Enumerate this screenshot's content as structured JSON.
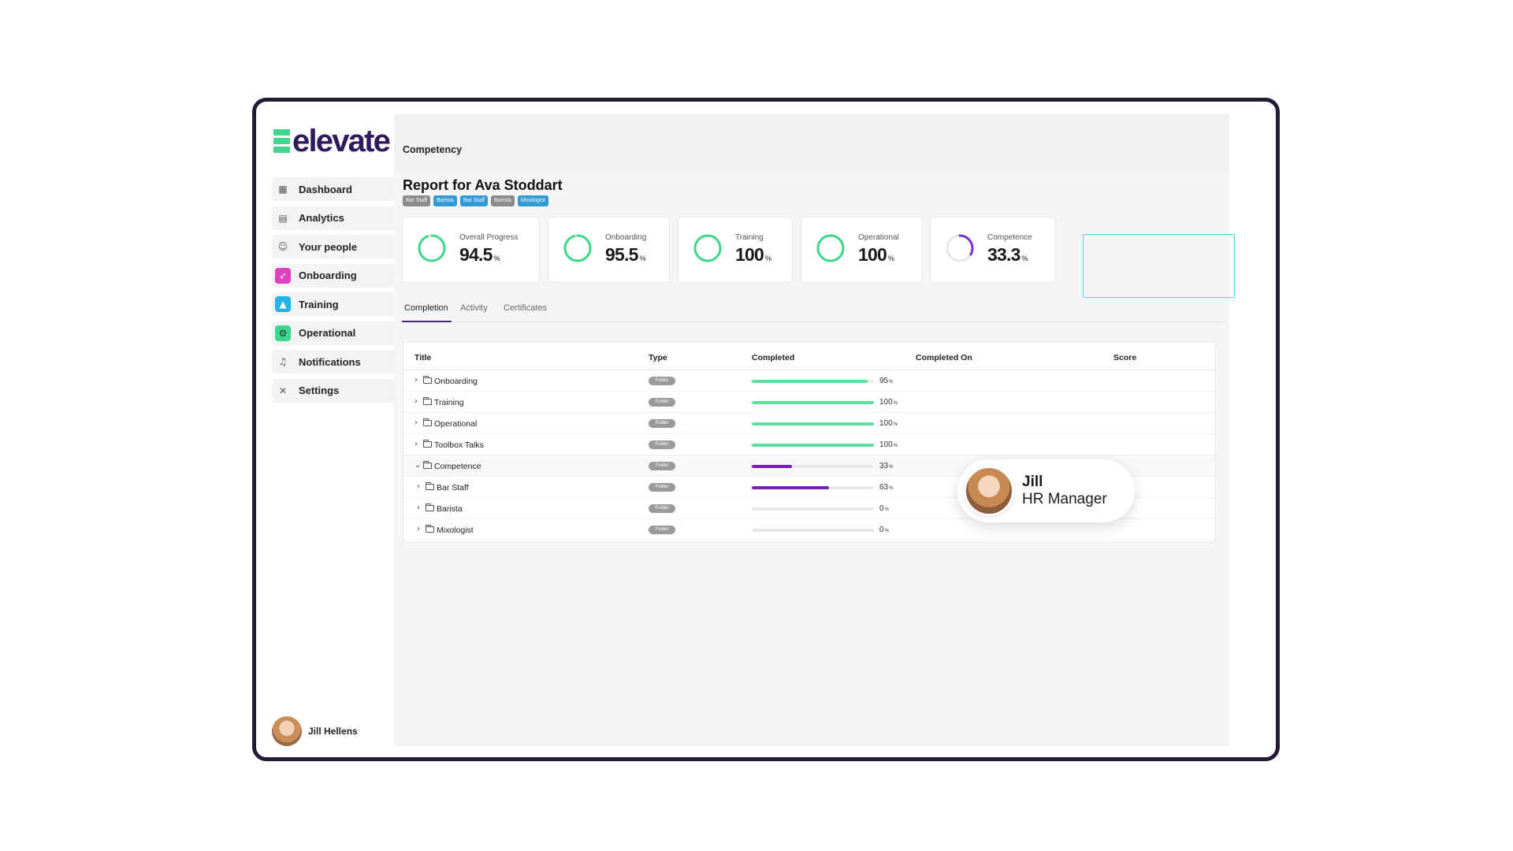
{
  "brand": {
    "name": "elevate",
    "mark_color": "#3dd68c",
    "text_color": "#2e1a5c"
  },
  "nav": [
    {
      "label": "Dashboard",
      "icon": "dashboard-icon"
    },
    {
      "label": "Analytics",
      "icon": "analytics-icon"
    },
    {
      "label": "Your people",
      "icon": "people-icon"
    },
    {
      "label": "Onboarding",
      "icon": "rocket-icon"
    },
    {
      "label": "Training",
      "icon": "graduation-cap-icon"
    },
    {
      "label": "Operational",
      "icon": "operational-icon"
    },
    {
      "label": "Notifications",
      "icon": "bell-icon"
    },
    {
      "label": "Settings",
      "icon": "tools-icon"
    }
  ],
  "user": {
    "name": "Jill Hellens"
  },
  "page": {
    "title": "Competency"
  },
  "report": {
    "title": "Report for Ava Stoddart",
    "tags": [
      "Bar Staff",
      "Barista",
      "Bar Staff",
      "Barista",
      "Mixologist"
    ]
  },
  "stats": [
    {
      "label": "Overall Progress",
      "value": "94.5",
      "unit": "%",
      "progress": 0.945,
      "color": "#3dd68c"
    },
    {
      "label": "Onboarding",
      "value": "95.5",
      "unit": "%",
      "progress": 0.955,
      "color": "#3dd68c"
    },
    {
      "label": "Training",
      "value": "100",
      "unit": "%",
      "progress": 1.0,
      "color": "#3dd68c"
    },
    {
      "label": "Operational",
      "value": "100",
      "unit": "%",
      "progress": 1.0,
      "color": "#3dd68c"
    },
    {
      "label": "Competence",
      "value": "33.3",
      "unit": "%",
      "progress": 0.333,
      "color": "#7a2fd0"
    }
  ],
  "tabs": [
    {
      "label": "Completion"
    },
    {
      "label": "Activity"
    },
    {
      "label": "Certificates"
    }
  ],
  "table": {
    "headers": [
      "Title",
      "Type",
      "Completed",
      "Completed On",
      "Score"
    ],
    "type_label": "Folder",
    "rows": [
      {
        "title": "Onboarding",
        "percent": "95",
        "progress": 0.95,
        "expanded": false,
        "child": false
      },
      {
        "title": "Training",
        "percent": "100",
        "progress": 1.0,
        "expanded": false,
        "child": false
      },
      {
        "title": "Operational",
        "percent": "100",
        "progress": 1.0,
        "expanded": false,
        "child": false
      },
      {
        "title": "Toolbox Talks",
        "percent": "100",
        "progress": 1.0,
        "expanded": false,
        "child": false
      },
      {
        "title": "Competence",
        "percent": "33",
        "progress": 0.33,
        "expanded": true,
        "child": false
      },
      {
        "title": "Bar Staff",
        "percent": "63",
        "progress": 0.63,
        "expanded": false,
        "child": true
      },
      {
        "title": "Barista",
        "percent": "0",
        "progress": 0.0,
        "expanded": false,
        "child": true
      },
      {
        "title": "Mixologist",
        "percent": "0",
        "progress": 0.0,
        "expanded": false,
        "child": true
      }
    ],
    "colors": {
      "complete": "#5ee0a0",
      "partial": "#7a1fb8",
      "track": "#e8e8e8"
    }
  },
  "callout": {
    "name": "Jill",
    "role": "HR Manager"
  }
}
